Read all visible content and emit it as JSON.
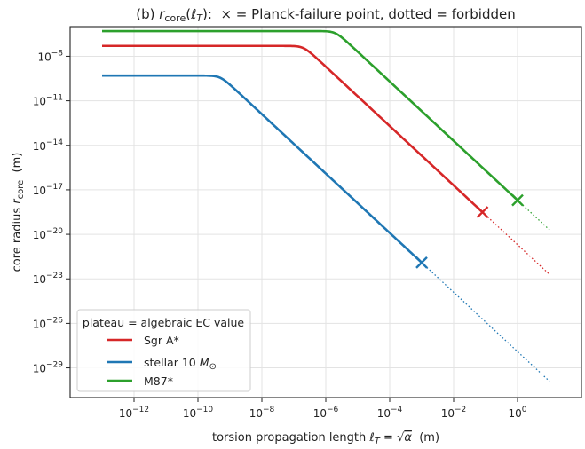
{
  "chart_data": {
    "type": "line",
    "title": "(b) r_core(ℓ_T):  × = Planck-failure point, dotted = forbidden",
    "title_parts": {
      "lead": "(b) ",
      "symbol": "r",
      "symbol_sub": "core",
      "arg_open": "(",
      "arg_symbol": "ℓ",
      "arg_sub": "T",
      "arg_close": "):",
      "rest": "  × = Planck-failure point, dotted = forbidden"
    },
    "xlabel": "torsion propagation length ℓ_T = √α  (m)",
    "xlabel_parts": {
      "lead": "torsion propagation length ",
      "symbol": "ℓ",
      "sub": "T",
      "eq": " = ",
      "sqrt": "√",
      "alpha": "α",
      "unit": "  (m)"
    },
    "ylabel": "core radius r_core  (m)",
    "ylabel_parts": {
      "lead": "core radius ",
      "symbol": "r",
      "sub": "core",
      "unit": "  (m)"
    },
    "x_scale": "log",
    "y_scale": "log",
    "xlim": [
      1e-14,
      100.0
    ],
    "ylim": [
      1e-31,
      1e-06
    ],
    "x_ticks": [
      {
        "value": 1e-12,
        "base": "10",
        "exp": "−12"
      },
      {
        "value": 1e-10,
        "base": "10",
        "exp": "−10"
      },
      {
        "value": 1e-08,
        "base": "10",
        "exp": "−8"
      },
      {
        "value": 1e-06,
        "base": "10",
        "exp": "−6"
      },
      {
        "value": 0.0001,
        "base": "10",
        "exp": "−4"
      },
      {
        "value": 0.01,
        "base": "10",
        "exp": "−2"
      },
      {
        "value": 1,
        "base": "10",
        "exp": "0"
      }
    ],
    "y_ticks": [
      {
        "value": 1e-08,
        "base": "10",
        "exp": "−8"
      },
      {
        "value": 1e-11,
        "base": "10",
        "exp": "−11"
      },
      {
        "value": 1e-14,
        "base": "10",
        "exp": "−14"
      },
      {
        "value": 1e-17,
        "base": "10",
        "exp": "−17"
      },
      {
        "value": 1e-20,
        "base": "10",
        "exp": "−20"
      },
      {
        "value": 1e-23,
        "base": "10",
        "exp": "−23"
      },
      {
        "value": 1e-26,
        "base": "10",
        "exp": "−26"
      },
      {
        "value": 1e-29,
        "base": "10",
        "exp": "−29"
      }
    ],
    "grid": true,
    "legend": {
      "title": "plateau = algebraic EC value",
      "placement": "lower-left"
    },
    "x_range": [
      1e-13,
      10
    ],
    "series": [
      {
        "name": "Sgr A*",
        "name_parts": {
          "text": "Sgr A*"
        },
        "color": "#d62728",
        "plateau": 5e-08,
        "knee": 2e-07,
        "failure_x": 0.08
      },
      {
        "name": "stellar 10 M_⊙",
        "name_parts": {
          "text": "stellar 10 ",
          "symbol": "M",
          "sub": "⊙"
        },
        "color": "#1f77b4",
        "plateau": 5e-10,
        "knee": 5e-10,
        "failure_x": 0.001
      },
      {
        "name": "M87*",
        "name_parts": {
          "text": "M87*"
        },
        "color": "#2ca02c",
        "plateau": 5e-07,
        "knee": 2e-06,
        "failure_x": 1.0
      }
    ]
  }
}
